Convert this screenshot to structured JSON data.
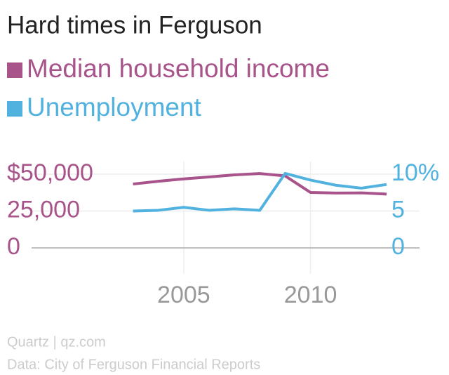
{
  "chart_data": {
    "type": "line",
    "title": "Hard times in Ferguson",
    "x": [
      2003,
      2004,
      2005,
      2006,
      2007,
      2008,
      2009,
      2010,
      2011,
      2012,
      2013
    ],
    "series": [
      {
        "name": "Median household income",
        "color": "#a8538a",
        "axis": "y",
        "values": [
          43300,
          45200,
          46800,
          48100,
          49500,
          50400,
          48800,
          37600,
          37200,
          37300,
          36500
        ]
      },
      {
        "name": "Unemployment",
        "color": "#51b2e0",
        "axis": "y2",
        "values": [
          5.0,
          5.1,
          5.5,
          5.1,
          5.3,
          5.1,
          10.1,
          9.2,
          8.5,
          8.1,
          8.6
        ]
      }
    ],
    "xlim": [
      1999,
      2014.3
    ],
    "xticks": [
      2005,
      2010
    ],
    "ylim": [
      0,
      50000
    ],
    "yticks": [
      0,
      {
        "value": 25000,
        "label": "25,000"
      },
      {
        "value": 50000,
        "label": "$50,000"
      }
    ],
    "y2lim": [
      0,
      10
    ],
    "y2ticks": [
      0,
      5,
      {
        "value": 10,
        "label": "10%"
      }
    ],
    "grid": true,
    "footer": [
      "Quartz | qz.com",
      "Data: City of Ferguson Financial Reports"
    ]
  }
}
